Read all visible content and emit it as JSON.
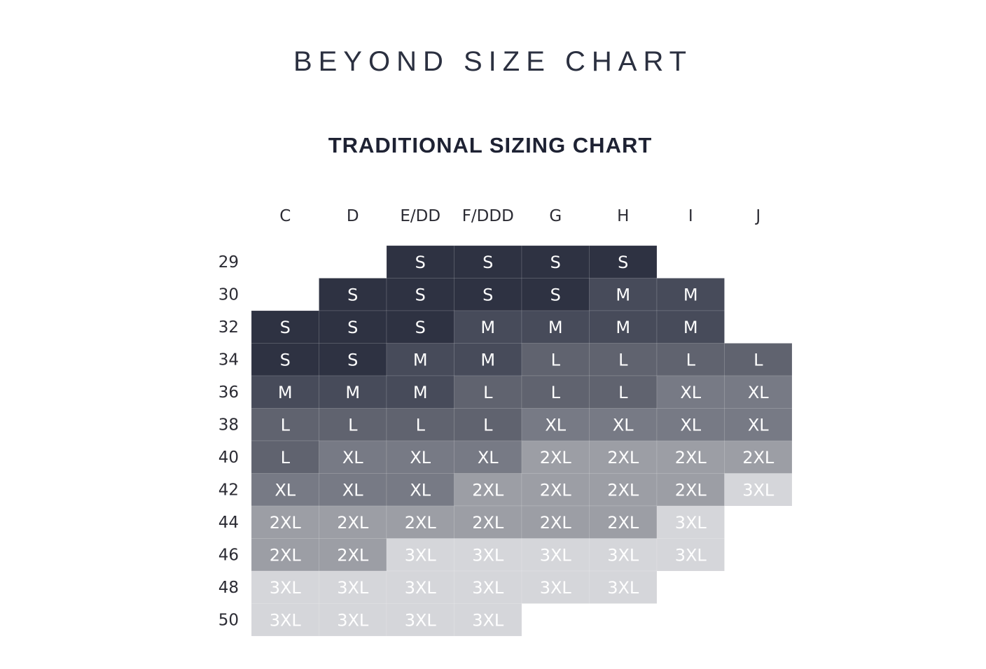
{
  "header": {
    "title": "BEYOND SIZE CHART"
  },
  "chart_data": {
    "type": "table",
    "title": "TRADITIONAL SIZING CHART",
    "columns": [
      "C",
      "D",
      "E/DD",
      "F/DDD",
      "G",
      "H",
      "I",
      "J"
    ],
    "rows": [
      "29",
      "30",
      "32",
      "34",
      "36",
      "38",
      "40",
      "42",
      "44",
      "46",
      "48",
      "50"
    ],
    "cells": [
      [
        null,
        null,
        "S",
        "S",
        "S",
        "S",
        null,
        null
      ],
      [
        null,
        "S",
        "S",
        "S",
        "S",
        "M",
        "M",
        null
      ],
      [
        "S",
        "S",
        "S",
        "M",
        "M",
        "M",
        "M",
        null
      ],
      [
        "S",
        "S",
        "M",
        "M",
        "L",
        "L",
        "L",
        "L"
      ],
      [
        "M",
        "M",
        "M",
        "L",
        "L",
        "L",
        "XL",
        "XL"
      ],
      [
        "L",
        "L",
        "L",
        "L",
        "XL",
        "XL",
        "XL",
        "XL"
      ],
      [
        "L",
        "XL",
        "XL",
        "XL",
        "2XL",
        "2XL",
        "2XL",
        "2XL"
      ],
      [
        "XL",
        "XL",
        "XL",
        "2XL",
        "2XL",
        "2XL",
        "2XL",
        "3XL"
      ],
      [
        "2XL",
        "2XL",
        "2XL",
        "2XL",
        "2XL",
        "2XL",
        "3XL",
        null
      ],
      [
        "2XL",
        "2XL",
        "3XL",
        "3XL",
        "3XL",
        "3XL",
        "3XL",
        null
      ],
      [
        "3XL",
        "3XL",
        "3XL",
        "3XL",
        "3XL",
        "3XL",
        null,
        null
      ],
      [
        "3XL",
        "3XL",
        "3XL",
        "3XL",
        null,
        null,
        null,
        null
      ]
    ],
    "size_colors": {
      "S": "#2e3242",
      "M": "#474b5a",
      "L": "#60636f",
      "XL": "#777a85",
      "2XL": "#9c9ea5",
      "3XL": "#d5d6da"
    },
    "grid": false,
    "legend": "none"
  }
}
